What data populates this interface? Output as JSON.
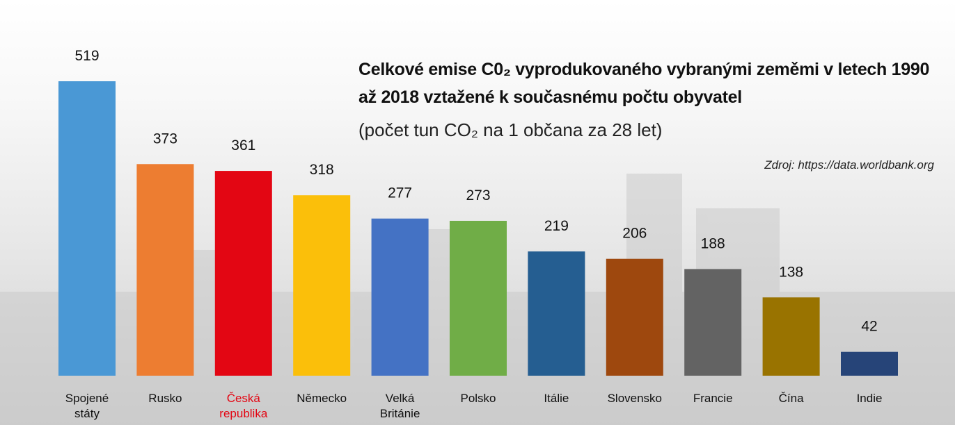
{
  "chart_data": {
    "type": "bar",
    "title": "Celkové emise C0₂ vyprodukovaného vybranými zeměmi v letech 1990 až 2018 vztažené k současnému počtu obyvatel",
    "subtitle": "(počet tun CO₂ na 1 občana za 28 let)",
    "source": "Zdroj: https://data.worldbank.org",
    "categories": [
      "Spojené\nstáty",
      "Rusko",
      "Česká\nrepublika",
      "Německo",
      "Velká\nBritánie",
      "Polsko",
      "Itálie",
      "Slovensko",
      "Francie",
      "Čína",
      "Indie"
    ],
    "values": [
      519,
      373,
      361,
      318,
      277,
      273,
      219,
      206,
      188,
      138,
      42
    ],
    "colors": [
      "#4a98d5",
      "#ed7d31",
      "#e30613",
      "#fbbf0a",
      "#4472c4",
      "#70ad47",
      "#255e91",
      "#9e480e",
      "#636363",
      "#997300",
      "#264478"
    ],
    "label_colors": [
      "#111111",
      "#111111",
      "#e30613",
      "#111111",
      "#111111",
      "#111111",
      "#111111",
      "#111111",
      "#111111",
      "#111111",
      "#111111"
    ]
  }
}
